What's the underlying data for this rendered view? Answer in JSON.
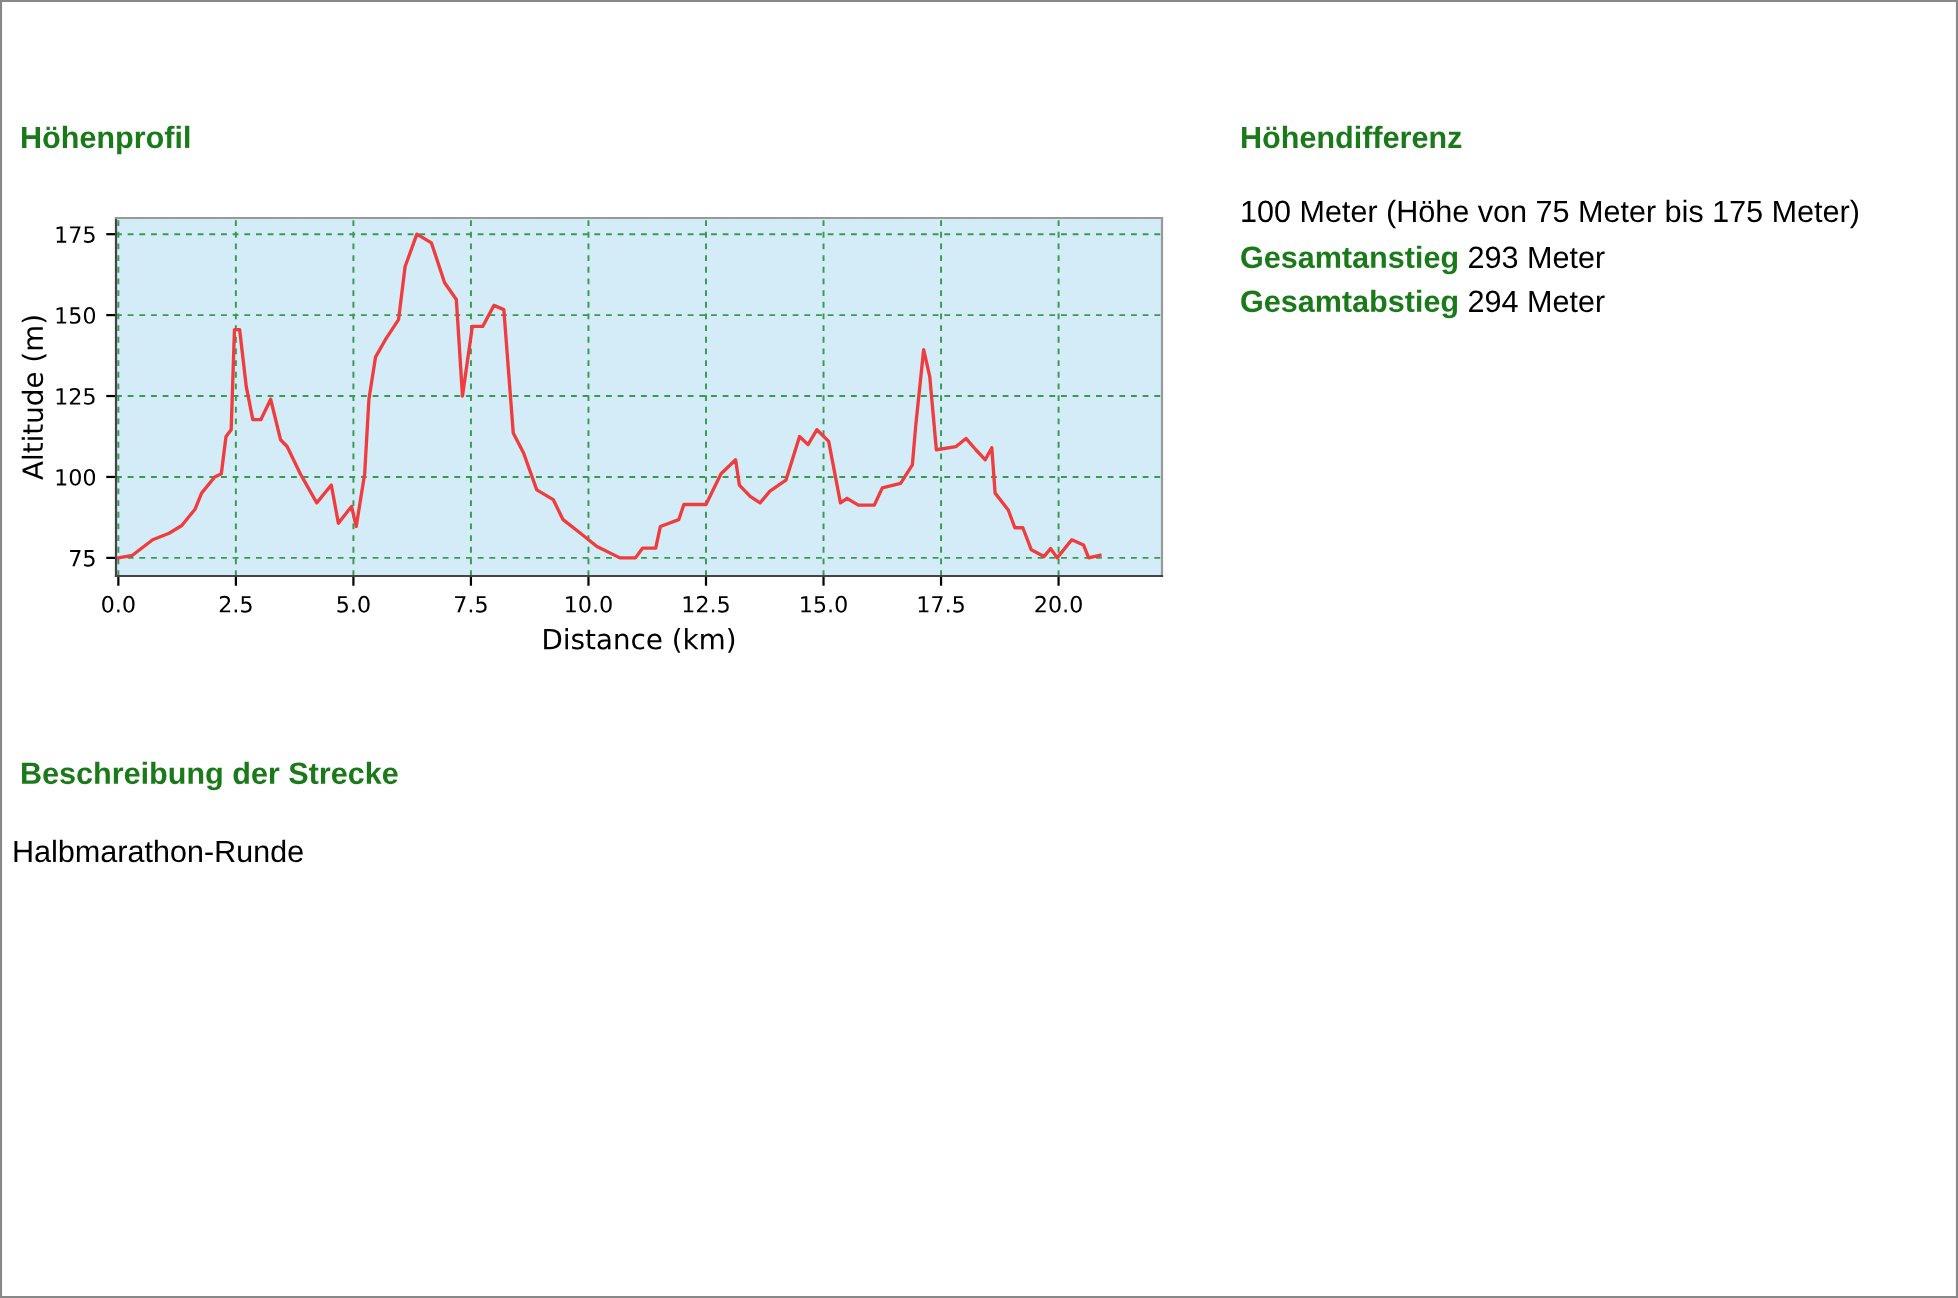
{
  "chart_data": {
    "type": "line",
    "title": "Höhenprofil",
    "xlabel": "Distance (km)",
    "ylabel": "Altitude (m)",
    "x": [
      0,
      0.3,
      0.73,
      1.08,
      1.35,
      1.63,
      1.77,
      2.05,
      2.19,
      2.29,
      2.4,
      2.47,
      2.58,
      2.72,
      2.86,
      3.03,
      3.24,
      3.45,
      3.59,
      3.87,
      4.22,
      4.53,
      4.68,
      4.96,
      5.06,
      5.24,
      5.33,
      5.47,
      5.68,
      5.96,
      6.1,
      6.35,
      6.66,
      6.94,
      7.19,
      7.32,
      7.53,
      7.75,
      7.99,
      8.2,
      8.4,
      8.62,
      8.9,
      9.25,
      9.46,
      9.83,
      10.18,
      10.67,
      11.0,
      11.15,
      11.43,
      11.53,
      11.92,
      12.03,
      12.5,
      12.82,
      13.13,
      13.21,
      13.44,
      13.65,
      13.86,
      14.2,
      14.49,
      14.67,
      14.86,
      15.11,
      15.36,
      15.5,
      15.74,
      16.08,
      16.25,
      16.64,
      16.89,
      16.96,
      17.13,
      17.26,
      17.4,
      17.82,
      18.03,
      18.24,
      18.44,
      18.58,
      18.65,
      18.93,
      19.07,
      19.24,
      19.42,
      19.69,
      19.83,
      19.97,
      20.28,
      20.53,
      20.64,
      20.88
    ],
    "series": [
      {
        "color": "#f03c3c",
        "values": [
          75,
          75.8,
          80.6,
          82.6,
          85,
          90,
          95,
          100,
          101,
          112.5,
          114.6,
          145.5,
          145.5,
          128,
          117.7,
          117.7,
          124,
          111.5,
          109.4,
          101,
          92,
          97.5,
          85.7,
          90.9,
          84.7,
          101,
          124,
          137,
          142.4,
          148.6,
          165,
          175,
          172.3,
          160,
          154.8,
          125,
          146.5,
          146.5,
          153,
          151.7,
          113.6,
          107.4,
          96,
          93,
          86.8,
          82.6,
          78.5,
          75,
          75,
          78,
          78,
          84.7,
          86.8,
          91.5,
          91.5,
          101,
          105.3,
          97.5,
          94,
          92,
          95.6,
          99,
          112.5,
          110,
          114.6,
          111,
          92,
          93.4,
          91.3,
          91.3,
          96.6,
          98,
          103.7,
          115.6,
          139.3,
          131,
          108.4,
          109.4,
          111.9,
          108.4,
          105.3,
          109,
          95,
          89.8,
          84.3,
          84.3,
          77.5,
          75.4,
          77.9,
          75,
          80.6,
          79,
          75,
          75.8
        ]
      }
    ],
    "xlim": [
      -0.05,
      22.2
    ],
    "ylim": [
      69.4,
      180
    ],
    "xticks": [
      {
        "value": 0,
        "label": "0.0"
      },
      2.5,
      {
        "value": 5,
        "label": "5.0"
      },
      7.5,
      {
        "value": 10,
        "label": "10.0"
      },
      12.5,
      {
        "value": 15,
        "label": "15.0"
      },
      17.5,
      {
        "value": 20,
        "label": "20.0"
      }
    ],
    "yticks": [
      75,
      100,
      125,
      150,
      175
    ],
    "grid": true,
    "line_style": "solid",
    "marker": "none",
    "annotations": [
      "Höhendifferenz",
      "100 Meter (Höhe von 75 Meter bis 175 Meter)",
      "Gesamtanstieg",
      "293 Meter",
      "Gesamtabstieg",
      "294 Meter",
      "Beschreibung der Strecke",
      "Halbmarathon-Runde"
    ]
  }
}
